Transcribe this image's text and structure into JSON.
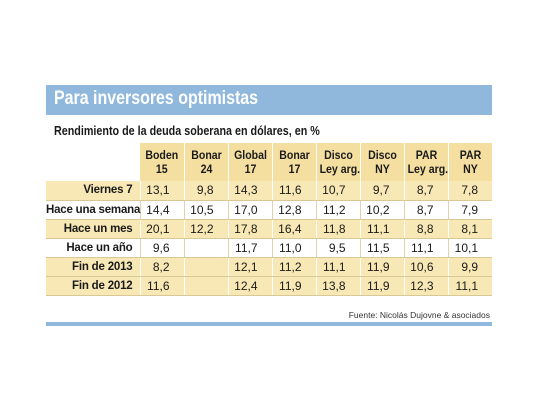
{
  "title": "Para inversores optimistas",
  "subtitle": "Rendimiento de la deuda soberana en dólares, en %",
  "columns": [
    {
      "line1": "Boden",
      "line2": "15"
    },
    {
      "line1": "Bonar",
      "line2": "24"
    },
    {
      "line1": "Global",
      "line2": "17"
    },
    {
      "line1": "Bonar",
      "line2": "17"
    },
    {
      "line1": "Disco",
      "line2": "Ley arg."
    },
    {
      "line1": "Disco",
      "line2": "NY"
    },
    {
      "line1": "PAR",
      "line2": "Ley arg."
    },
    {
      "line1": "PAR",
      "line2": "NY"
    }
  ],
  "rows": [
    {
      "label": "Viernes 7",
      "values": [
        "13,1",
        "9,8",
        "14,3",
        "11,6",
        "10,7",
        "9,7",
        "8,7",
        "7,8"
      ]
    },
    {
      "label": "Hace una semana",
      "values": [
        "14,4",
        "10,5",
        "17,0",
        "12,8",
        "11,2",
        "10,2",
        "8,7",
        "7,9"
      ]
    },
    {
      "label": "Hace un mes",
      "values": [
        "20,1",
        "12,2",
        "17,8",
        "16,4",
        "11,8",
        "11,1",
        "8,8",
        "8,1"
      ]
    },
    {
      "label": "Hace un año",
      "values": [
        "9,6",
        "",
        "11,7",
        "11,0",
        "9,5",
        "11,5",
        "11,1",
        "10,1"
      ]
    },
    {
      "label": "Fin de 2013",
      "values": [
        "8,2",
        "",
        "12,1",
        "11,2",
        "11,1",
        "11,9",
        "10,6",
        "9,9"
      ]
    },
    {
      "label": "Fin de 2012",
      "values": [
        "11,6",
        "",
        "12,4",
        "11,9",
        "13,8",
        "11,9",
        "12,3",
        "11,1"
      ]
    }
  ],
  "source": "Fuente: Nicolás Dujovne & asociados",
  "colors": {
    "banner": "#8fb8dc",
    "header_fill": "#f4dfa1",
    "row_fill": "#f7e8b5"
  }
}
